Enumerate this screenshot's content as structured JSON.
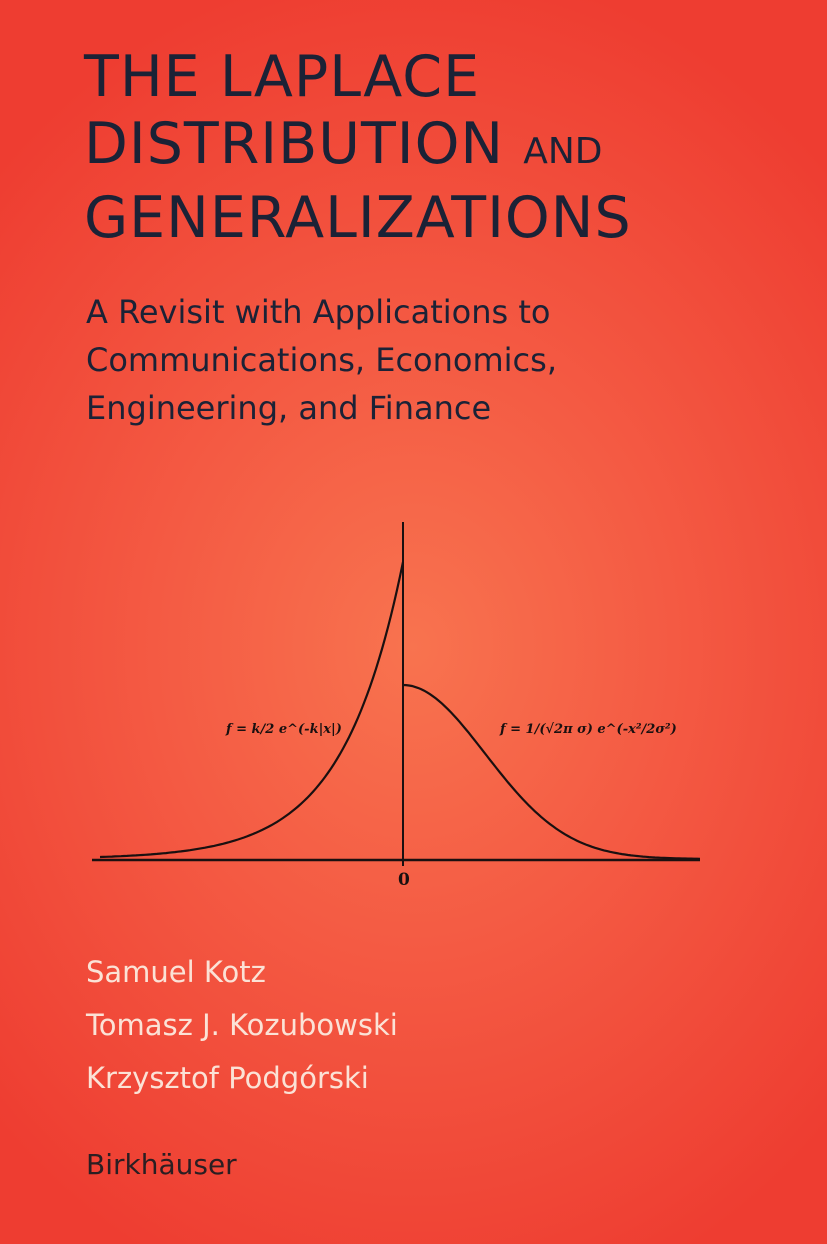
{
  "cover": {
    "title_line1": "THE LAPLACE",
    "title_line2": "DISTRIBUTION",
    "title_and": "AND",
    "title_line3": "GENERALIZATIONS",
    "subtitle": [
      "A Revisit with Applications to",
      "Communications, Economics,",
      "Engineering, and Finance"
    ],
    "authors": [
      "Samuel Kotz",
      "Tomasz J. Kozubowski",
      "Krzysztof Podgórski"
    ],
    "publisher": "Birkhäuser",
    "colors": {
      "background": "#f25543",
      "title": "#1b2236",
      "authors": "#fbe2d6"
    }
  },
  "figure": {
    "laplace_formula": "f = k/2 e^(-k|x|)",
    "gaussian_formula": "f = 1/(√2π σ) e^(-x²/2σ²)",
    "origin_label": "0"
  }
}
